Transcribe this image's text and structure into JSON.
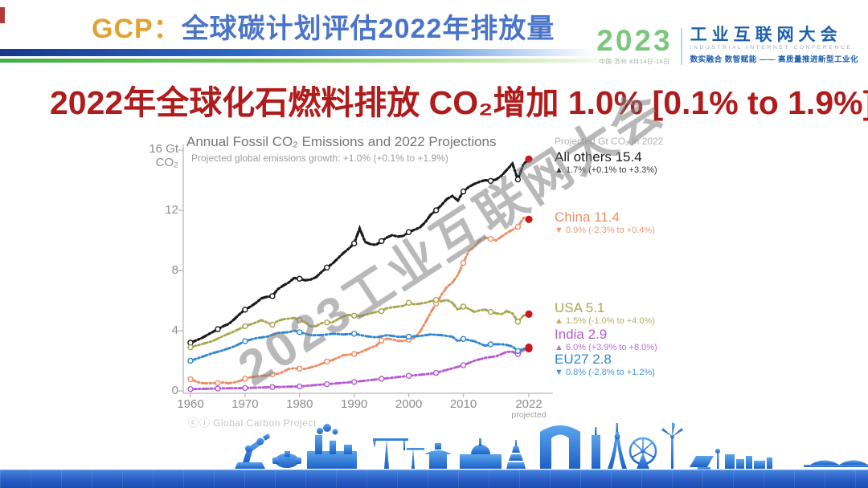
{
  "slide": {
    "header": {
      "prefix": "GCP：",
      "title": "全球碳计划评估2022年排放量"
    },
    "headline": "2022年全球化石燃料排放 CO₂增加 1.0% [0.1% to 1.9%]",
    "watermark": "2023工业互联网大会",
    "logo": {
      "year": "2023",
      "venue": "中国·苏州  8月14日-16日",
      "name_cn": "工业互联网大会",
      "name_en": "INDUSTRIAL INTERNET CONFERENCE",
      "slogan": "数实融合  数智赋能 —— 高质量推进新型工业化"
    }
  },
  "chart_data": {
    "type": "line",
    "title": "Annual Fossil CO₂ Emissions and 2022 Projections",
    "subtitle": "Projected global emissions growth: +1.0% (+0.1% to +1.9%)",
    "legend_header": "Projected Gt CO₂ in 2022",
    "attribution": "Global Carbon Project",
    "license_icons": "ⓒⓘ",
    "ylabel": "Gt CO₂",
    "y_unit_label": [
      "16 Gt",
      "CO₂"
    ],
    "y_ticks": [
      0,
      4,
      8,
      12,
      16
    ],
    "ylim": [
      0,
      16.5
    ],
    "x_ticks": [
      1960,
      1970,
      1980,
      1990,
      2000,
      2010,
      2022
    ],
    "x_tick_note": "projected",
    "xlim": [
      1958.5,
      2023.5
    ],
    "grid": false,
    "legend_position": "right",
    "projection_color": "#c9191c",
    "series": [
      {
        "id": "all-others",
        "name": "All others",
        "label": "All others 15.4",
        "change": "▲ 1.7% (+0.1% to +3.3%)",
        "color": "#1a1a1a",
        "projected_2022": 15.4,
        "points": [
          [
            1960,
            3.2
          ],
          [
            1961,
            3.35
          ],
          [
            1962,
            3.5
          ],
          [
            1963,
            3.7
          ],
          [
            1964,
            3.9
          ],
          [
            1965,
            4.1
          ],
          [
            1966,
            4.3
          ],
          [
            1967,
            4.45
          ],
          [
            1968,
            4.75
          ],
          [
            1969,
            5.1
          ],
          [
            1970,
            5.4
          ],
          [
            1971,
            5.6
          ],
          [
            1972,
            5.85
          ],
          [
            1973,
            6.15
          ],
          [
            1974,
            6.25
          ],
          [
            1975,
            6.3
          ],
          [
            1976,
            6.75
          ],
          [
            1977,
            7.0
          ],
          [
            1978,
            7.2
          ],
          [
            1979,
            7.5
          ],
          [
            1980,
            7.45
          ],
          [
            1981,
            7.35
          ],
          [
            1982,
            7.4
          ],
          [
            1983,
            7.55
          ],
          [
            1984,
            7.9
          ],
          [
            1985,
            8.2
          ],
          [
            1986,
            8.45
          ],
          [
            1987,
            8.8
          ],
          [
            1988,
            9.15
          ],
          [
            1989,
            9.45
          ],
          [
            1990,
            9.8
          ],
          [
            1991,
            10.8
          ],
          [
            1992,
            9.9
          ],
          [
            1993,
            9.75
          ],
          [
            1994,
            9.7
          ],
          [
            1995,
            9.95
          ],
          [
            1996,
            10.2
          ],
          [
            1997,
            10.35
          ],
          [
            1998,
            10.25
          ],
          [
            1999,
            10.3
          ],
          [
            2000,
            10.55
          ],
          [
            2001,
            10.7
          ],
          [
            2002,
            10.85
          ],
          [
            2003,
            11.2
          ],
          [
            2004,
            11.7
          ],
          [
            2005,
            12.0
          ],
          [
            2006,
            12.35
          ],
          [
            2007,
            12.75
          ],
          [
            2008,
            12.95
          ],
          [
            2009,
            12.65
          ],
          [
            2010,
            13.25
          ],
          [
            2011,
            13.55
          ],
          [
            2012,
            13.75
          ],
          [
            2013,
            13.9
          ],
          [
            2014,
            14.0
          ],
          [
            2015,
            13.95
          ],
          [
            2016,
            14.05
          ],
          [
            2017,
            14.3
          ],
          [
            2018,
            14.7
          ],
          [
            2019,
            15.1
          ],
          [
            2020,
            14.05
          ],
          [
            2021,
            15.05
          ],
          [
            2022,
            15.4
          ]
        ]
      },
      {
        "id": "china",
        "name": "China",
        "label": "China 11.4",
        "change": "▼ 0.9% (-2.3% to +0.4%)",
        "color": "#ec8e65",
        "projected_2022": 11.4,
        "points": [
          [
            1960,
            0.78
          ],
          [
            1961,
            0.62
          ],
          [
            1962,
            0.52
          ],
          [
            1963,
            0.5
          ],
          [
            1964,
            0.52
          ],
          [
            1965,
            0.52
          ],
          [
            1966,
            0.56
          ],
          [
            1967,
            0.5
          ],
          [
            1968,
            0.56
          ],
          [
            1969,
            0.66
          ],
          [
            1970,
            0.8
          ],
          [
            1971,
            0.9
          ],
          [
            1972,
            0.96
          ],
          [
            1973,
            1.0
          ],
          [
            1974,
            1.02
          ],
          [
            1975,
            1.1
          ],
          [
            1976,
            1.14
          ],
          [
            1977,
            1.26
          ],
          [
            1978,
            1.46
          ],
          [
            1979,
            1.5
          ],
          [
            1980,
            1.48
          ],
          [
            1981,
            1.46
          ],
          [
            1982,
            1.56
          ],
          [
            1983,
            1.66
          ],
          [
            1984,
            1.8
          ],
          [
            1985,
            1.95
          ],
          [
            1986,
            2.05
          ],
          [
            1987,
            2.2
          ],
          [
            1988,
            2.38
          ],
          [
            1989,
            2.4
          ],
          [
            1990,
            2.45
          ],
          [
            1991,
            2.55
          ],
          [
            1992,
            2.7
          ],
          [
            1993,
            2.88
          ],
          [
            1994,
            3.0
          ],
          [
            1995,
            3.35
          ],
          [
            1996,
            3.47
          ],
          [
            1997,
            3.42
          ],
          [
            1998,
            3.32
          ],
          [
            1999,
            3.32
          ],
          [
            2000,
            3.4
          ],
          [
            2001,
            3.52
          ],
          [
            2002,
            3.9
          ],
          [
            2003,
            4.52
          ],
          [
            2004,
            5.2
          ],
          [
            2005,
            5.8
          ],
          [
            2006,
            6.4
          ],
          [
            2007,
            6.9
          ],
          [
            2008,
            7.2
          ],
          [
            2009,
            7.7
          ],
          [
            2010,
            8.5
          ],
          [
            2011,
            9.3
          ],
          [
            2012,
            9.55
          ],
          [
            2013,
            10.0
          ],
          [
            2014,
            10.2
          ],
          [
            2015,
            10.1
          ],
          [
            2016,
            10.0
          ],
          [
            2017,
            10.25
          ],
          [
            2018,
            10.5
          ],
          [
            2019,
            10.7
          ],
          [
            2020,
            10.9
          ],
          [
            2021,
            11.5
          ],
          [
            2022,
            11.4
          ]
        ]
      },
      {
        "id": "usa",
        "name": "USA",
        "label": "USA 5.1",
        "change": "▲ 1.5% (-1.0% to +4.0%)",
        "color": "#a9a64f",
        "projected_2022": 5.1,
        "points": [
          [
            1960,
            2.9
          ],
          [
            1962,
            3.1
          ],
          [
            1964,
            3.3
          ],
          [
            1966,
            3.65
          ],
          [
            1968,
            3.95
          ],
          [
            1970,
            4.3
          ],
          [
            1972,
            4.55
          ],
          [
            1973,
            4.7
          ],
          [
            1974,
            4.55
          ],
          [
            1975,
            4.4
          ],
          [
            1976,
            4.65
          ],
          [
            1977,
            4.75
          ],
          [
            1978,
            4.8
          ],
          [
            1979,
            4.85
          ],
          [
            1980,
            4.7
          ],
          [
            1981,
            4.55
          ],
          [
            1982,
            4.3
          ],
          [
            1983,
            4.3
          ],
          [
            1984,
            4.5
          ],
          [
            1985,
            4.55
          ],
          [
            1986,
            4.55
          ],
          [
            1987,
            4.75
          ],
          [
            1988,
            4.95
          ],
          [
            1989,
            5.05
          ],
          [
            1990,
            5.0
          ],
          [
            1991,
            4.95
          ],
          [
            1992,
            5.05
          ],
          [
            1993,
            5.15
          ],
          [
            1994,
            5.25
          ],
          [
            1995,
            5.3
          ],
          [
            1996,
            5.5
          ],
          [
            1997,
            5.55
          ],
          [
            1998,
            5.6
          ],
          [
            1999,
            5.65
          ],
          [
            2000,
            5.85
          ],
          [
            2001,
            5.75
          ],
          [
            2002,
            5.8
          ],
          [
            2003,
            5.85
          ],
          [
            2004,
            5.95
          ],
          [
            2005,
            6.05
          ],
          [
            2006,
            5.95
          ],
          [
            2007,
            6.05
          ],
          [
            2008,
            5.85
          ],
          [
            2009,
            5.4
          ],
          [
            2010,
            5.6
          ],
          [
            2011,
            5.45
          ],
          [
            2012,
            5.25
          ],
          [
            2013,
            5.35
          ],
          [
            2014,
            5.4
          ],
          [
            2015,
            5.25
          ],
          [
            2016,
            5.15
          ],
          [
            2017,
            5.1
          ],
          [
            2018,
            5.3
          ],
          [
            2019,
            5.15
          ],
          [
            2020,
            4.6
          ],
          [
            2021,
            5.0
          ],
          [
            2022,
            5.1
          ]
        ]
      },
      {
        "id": "india",
        "name": "India",
        "label": "India 2.9",
        "change": "▲ 6.0% (+3.9% to +8.0%)",
        "color": "#b65ad1",
        "projected_2022": 2.9,
        "points": [
          [
            1960,
            0.12
          ],
          [
            1965,
            0.16
          ],
          [
            1970,
            0.19
          ],
          [
            1975,
            0.25
          ],
          [
            1980,
            0.3
          ],
          [
            1985,
            0.45
          ],
          [
            1990,
            0.6
          ],
          [
            1995,
            0.8
          ],
          [
            2000,
            1.0
          ],
          [
            2003,
            1.1
          ],
          [
            2005,
            1.2
          ],
          [
            2008,
            1.5
          ],
          [
            2010,
            1.7
          ],
          [
            2012,
            2.0
          ],
          [
            2014,
            2.2
          ],
          [
            2016,
            2.3
          ],
          [
            2018,
            2.6
          ],
          [
            2019,
            2.6
          ],
          [
            2020,
            2.45
          ],
          [
            2021,
            2.7
          ],
          [
            2022,
            2.9
          ]
        ]
      },
      {
        "id": "eu27",
        "name": "EU27",
        "label": "EU27 2.8",
        "change": "▼ 0.8% (-2.8% to +1.2%)",
        "color": "#2f86d2",
        "projected_2022": 2.8,
        "points": [
          [
            1960,
            2.0
          ],
          [
            1962,
            2.25
          ],
          [
            1964,
            2.5
          ],
          [
            1966,
            2.7
          ],
          [
            1968,
            2.95
          ],
          [
            1970,
            3.3
          ],
          [
            1972,
            3.5
          ],
          [
            1974,
            3.6
          ],
          [
            1976,
            3.85
          ],
          [
            1978,
            3.9
          ],
          [
            1979,
            4.0
          ],
          [
            1980,
            3.9
          ],
          [
            1982,
            3.7
          ],
          [
            1984,
            3.7
          ],
          [
            1986,
            3.8
          ],
          [
            1988,
            3.75
          ],
          [
            1990,
            3.8
          ],
          [
            1992,
            3.65
          ],
          [
            1994,
            3.55
          ],
          [
            1996,
            3.7
          ],
          [
            1998,
            3.6
          ],
          [
            2000,
            3.6
          ],
          [
            2002,
            3.65
          ],
          [
            2004,
            3.75
          ],
          [
            2006,
            3.7
          ],
          [
            2008,
            3.6
          ],
          [
            2009,
            3.3
          ],
          [
            2010,
            3.45
          ],
          [
            2012,
            3.3
          ],
          [
            2014,
            3.0
          ],
          [
            2015,
            3.1
          ],
          [
            2016,
            3.1
          ],
          [
            2017,
            3.1
          ],
          [
            2018,
            3.05
          ],
          [
            2019,
            2.95
          ],
          [
            2020,
            2.65
          ],
          [
            2021,
            2.8
          ],
          [
            2022,
            2.8
          ]
        ]
      }
    ]
  }
}
